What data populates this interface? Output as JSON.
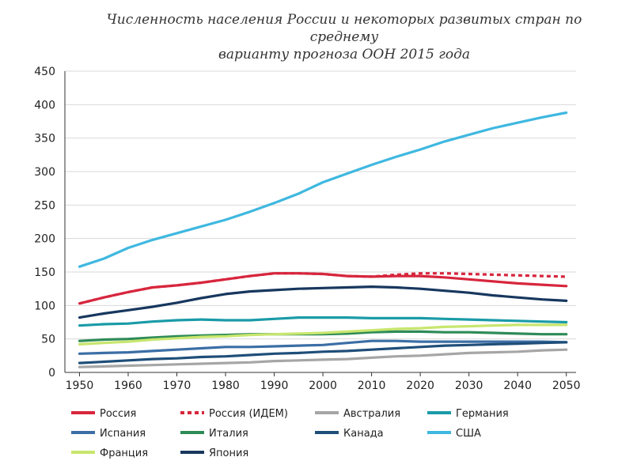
{
  "chart_data": {
    "type": "line",
    "title_lines": [
      "Численность населения России и некоторых развитых стран по среднему",
      "варианту прогноза ООН 2015 года"
    ],
    "xlabel": "",
    "ylabel": "",
    "xlim": [
      1947,
      2052
    ],
    "ylim": [
      0,
      450
    ],
    "yticks": [
      0,
      50,
      100,
      150,
      200,
      250,
      300,
      350,
      400,
      450
    ],
    "xticks": [
      1950,
      1960,
      1970,
      1980,
      1990,
      2000,
      2010,
      2020,
      2030,
      2040,
      2050
    ],
    "grid": "horizontal",
    "legend_position": "bottom",
    "x": [
      1950,
      1955,
      1960,
      1965,
      1970,
      1975,
      1980,
      1985,
      1990,
      1995,
      2000,
      2005,
      2010,
      2015,
      2020,
      2025,
      2030,
      2035,
      2040,
      2045,
      2050
    ],
    "series": [
      {
        "name": "Россия",
        "color": "#d7263d",
        "dash": false,
        "values": [
          103,
          112,
          120,
          127,
          130,
          134,
          139,
          144,
          148,
          148,
          147,
          144,
          143,
          144,
          144,
          142,
          139,
          136,
          133,
          131,
          129
        ]
      },
      {
        "name": "Россия (ИДЕМ)",
        "color": "#d7263d",
        "dash": true,
        "values": [
          103,
          112,
          120,
          127,
          130,
          134,
          139,
          144,
          148,
          148,
          147,
          144,
          143,
          146,
          148,
          148,
          147,
          146,
          145,
          144,
          143
        ]
      },
      {
        "name": "Австралия",
        "color": "#a6a6a6",
        "dash": false,
        "values": [
          8,
          9,
          10,
          11,
          12,
          13,
          14,
          15,
          17,
          18,
          19,
          20,
          22,
          24,
          25,
          27,
          29,
          30,
          31,
          33,
          34
        ]
      },
      {
        "name": "Германия",
        "color": "#1a9ba8",
        "dash": false,
        "values": [
          70,
          72,
          73,
          76,
          78,
          79,
          78,
          78,
          80,
          82,
          82,
          82,
          81,
          81,
          81,
          80,
          79,
          78,
          77,
          76,
          75
        ]
      },
      {
        "name": "Испания",
        "color": "#3b6ea5",
        "dash": false,
        "values": [
          28,
          29,
          30,
          32,
          34,
          36,
          38,
          38,
          39,
          40,
          41,
          44,
          47,
          47,
          46,
          46,
          46,
          46,
          46,
          46,
          45
        ]
      },
      {
        "name": "Италия",
        "color": "#2e8b57",
        "dash": false,
        "values": [
          47,
          49,
          50,
          52,
          54,
          55,
          56,
          57,
          57,
          57,
          57,
          58,
          60,
          61,
          61,
          60,
          60,
          59,
          58,
          57,
          57
        ]
      },
      {
        "name": "Канада",
        "color": "#1f4e79",
        "dash": false,
        "values": [
          14,
          16,
          18,
          20,
          21,
          23,
          24,
          26,
          28,
          29,
          31,
          32,
          34,
          36,
          38,
          40,
          41,
          42,
          43,
          44,
          45
        ]
      },
      {
        "name": "США",
        "color": "#3fb8e0",
        "dash": false,
        "values": [
          158,
          170,
          186,
          198,
          208,
          218,
          228,
          240,
          253,
          267,
          284,
          297,
          310,
          322,
          333,
          345,
          355,
          365,
          373,
          381,
          388
        ]
      },
      {
        "name": "Франция",
        "color": "#c8e66e",
        "dash": false,
        "values": [
          42,
          44,
          46,
          49,
          51,
          53,
          54,
          56,
          57,
          58,
          59,
          61,
          63,
          65,
          66,
          68,
          69,
          70,
          71,
          71,
          71
        ]
      },
      {
        "name": "Япония",
        "color": "#17375e",
        "dash": false,
        "values": [
          82,
          88,
          93,
          98,
          104,
          111,
          117,
          121,
          123,
          125,
          126,
          127,
          128,
          127,
          125,
          122,
          119,
          115,
          112,
          109,
          107
        ]
      }
    ]
  }
}
